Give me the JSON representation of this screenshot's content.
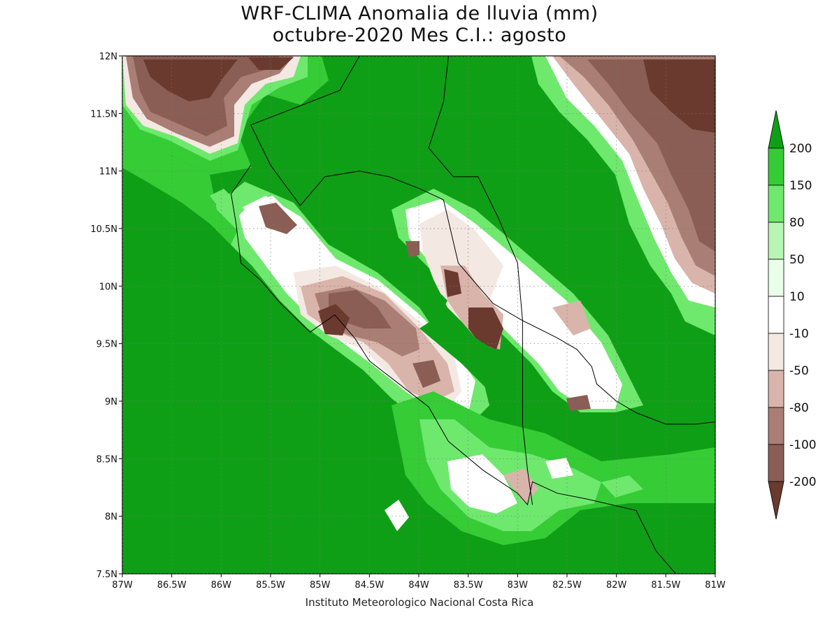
{
  "title_line1": "WRF-CLIMA Anomalia de lluvia (mm)",
  "title_line2": "octubre-2020 Mes C.I.: agosto",
  "credit": "Instituto Meteorologico Nacional Costa Rica",
  "map": {
    "lon_range": [
      -87,
      -81
    ],
    "lat_range": [
      7.5,
      12
    ],
    "lon_ticks": [
      {
        "value": -87,
        "label": "87W"
      },
      {
        "value": -86.5,
        "label": "86.5W"
      },
      {
        "value": -86,
        "label": "86W"
      },
      {
        "value": -85.5,
        "label": "85.5W"
      },
      {
        "value": -85,
        "label": "85W"
      },
      {
        "value": -84.5,
        "label": "84.5W"
      },
      {
        "value": -84,
        "label": "84W"
      },
      {
        "value": -83.5,
        "label": "83.5W"
      },
      {
        "value": -83,
        "label": "83W"
      },
      {
        "value": -82.5,
        "label": "82.5W"
      },
      {
        "value": -82,
        "label": "82W"
      },
      {
        "value": -81.5,
        "label": "81.5W"
      },
      {
        "value": -81,
        "label": "81W"
      }
    ],
    "lat_ticks": [
      {
        "value": 7.5,
        "label": "7.5N"
      },
      {
        "value": 8,
        "label": "8N"
      },
      {
        "value": 8.5,
        "label": "8.5N"
      },
      {
        "value": 9,
        "label": "9N"
      },
      {
        "value": 9.5,
        "label": "9.5N"
      },
      {
        "value": 10,
        "label": "10N"
      },
      {
        "value": 10.5,
        "label": "10.5N"
      },
      {
        "value": 11,
        "label": "11N"
      },
      {
        "value": 11.5,
        "label": "11.5N"
      },
      {
        "value": 12,
        "label": "12N"
      }
    ],
    "grid": true,
    "coastline_lonlat": [
      [
        -84.6,
        12
      ],
      [
        -84.8,
        11.7
      ],
      [
        -85.1,
        11.6
      ],
      [
        -85.7,
        11.4
      ],
      [
        -85.5,
        11.05
      ],
      [
        -85.2,
        10.7
      ],
      [
        -84.95,
        10.95
      ],
      [
        -84.6,
        11.0
      ],
      [
        -84.3,
        10.95
      ],
      [
        -84.0,
        10.85
      ],
      [
        -83.75,
        10.75
      ],
      [
        -83.6,
        10.2
      ],
      [
        -83.25,
        9.85
      ],
      [
        -82.95,
        9.7
      ],
      [
        -82.6,
        9.55
      ],
      [
        -82.4,
        9.45
      ],
      [
        -82.25,
        9.3
      ],
      [
        -82.2,
        9.15
      ],
      [
        -82.0,
        9.0
      ],
      [
        -81.8,
        8.9
      ],
      [
        -81.5,
        8.8
      ],
      [
        -81.2,
        8.8
      ],
      [
        -81,
        8.82
      ]
    ],
    "pacific_coast_lonlat": [
      [
        -85.7,
        11.05
      ],
      [
        -85.9,
        10.8
      ],
      [
        -85.85,
        10.55
      ],
      [
        -85.8,
        10.2
      ],
      [
        -85.6,
        10.05
      ],
      [
        -85.4,
        9.85
      ],
      [
        -85.1,
        9.6
      ],
      [
        -84.85,
        9.75
      ],
      [
        -84.65,
        9.55
      ],
      [
        -84.5,
        9.35
      ],
      [
        -84.2,
        9.15
      ],
      [
        -83.9,
        8.95
      ],
      [
        -83.7,
        8.65
      ],
      [
        -83.35,
        8.4
      ],
      [
        -83.0,
        8.2
      ],
      [
        -82.9,
        8.1
      ],
      [
        -82.85,
        8.3
      ],
      [
        -82.6,
        8.2
      ],
      [
        -82.3,
        8.15
      ],
      [
        -81.8,
        8.05
      ],
      [
        -81.6,
        7.7
      ],
      [
        -81.4,
        7.5
      ]
    ],
    "border_lonlat": [
      [
        -83.7,
        12
      ],
      [
        -83.75,
        11.6
      ],
      [
        -83.9,
        11.2
      ],
      [
        -83.65,
        10.95
      ],
      [
        -83.4,
        10.95
      ],
      [
        -83.2,
        10.6
      ],
      [
        -83.0,
        10.2
      ],
      [
        -82.95,
        9.7
      ],
      [
        -82.95,
        9.2
      ],
      [
        -82.95,
        8.8
      ],
      [
        -82.9,
        8.4
      ],
      [
        -82.85,
        8.1
      ]
    ]
  },
  "colorbar": {
    "colors": [
      "#6b3a2e",
      "#8a5e55",
      "#a97e74",
      "#d9b4aa",
      "#f4e8e2",
      "#ffffff",
      "#e9ffe9",
      "#b9f5b3",
      "#6fe86e",
      "#35cc36",
      "#0f9f16"
    ],
    "labels": [
      "-200",
      "-100",
      "-80",
      "-50",
      "-10",
      "10",
      "50",
      "80",
      "150",
      "200"
    ]
  }
}
